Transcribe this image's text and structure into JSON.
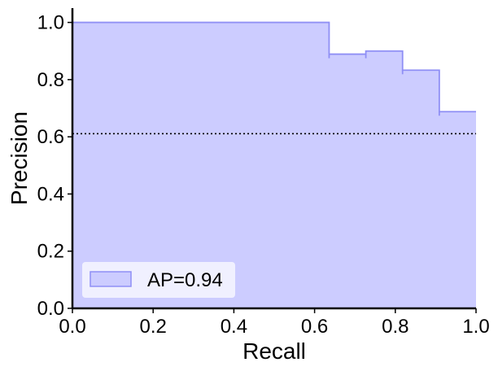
{
  "chart_data": {
    "type": "area",
    "title": "",
    "xlabel": "Recall",
    "ylabel": "Precision",
    "xlim": [
      0.0,
      1.0
    ],
    "ylim": [
      0.0,
      1.05
    ],
    "xticks": [
      "0.0",
      "0.2",
      "0.4",
      "0.6",
      "0.8",
      "1.0"
    ],
    "yticks": [
      "0.0",
      "0.2",
      "0.4",
      "0.6",
      "0.8",
      "1.0"
    ],
    "grid": false,
    "legend_position": "lower-left",
    "series": [
      {
        "name": "AP=0.94",
        "style": "step",
        "x": [
          0.0,
          0.636,
          0.636,
          0.727,
          0.727,
          0.818,
          0.818,
          0.909,
          0.909,
          1.0
        ],
        "y": [
          1.0,
          1.0,
          0.889,
          0.889,
          0.9,
          0.9,
          0.833,
          0.833,
          0.688,
          0.688
        ]
      }
    ],
    "baseline": {
      "y": 0.611,
      "style": "dotted"
    },
    "colors": {
      "fill": "#ccccff",
      "line": "#8f8ff5",
      "axis": "#000000",
      "baseline": "#000000"
    }
  }
}
